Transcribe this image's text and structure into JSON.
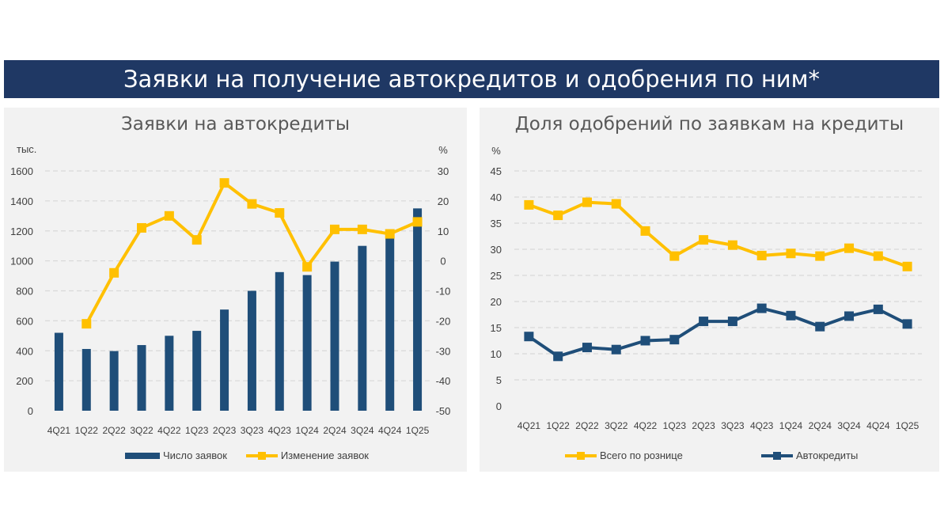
{
  "page_title": "Заявки на получение автокредитов и одобрения по ним*",
  "colors": {
    "navy": "#1f3864",
    "bar": "#1f4e79",
    "yellow": "#ffc000",
    "panel_bg": "#f2f2f2",
    "grid": "#d9d9d9"
  },
  "chart_data": [
    {
      "type": "bar",
      "title": "Заявки на автокредиты",
      "categories": [
        "4Q21",
        "1Q22",
        "2Q22",
        "3Q22",
        "4Q22",
        "1Q23",
        "2Q23",
        "3Q23",
        "4Q23",
        "1Q24",
        "2Q24",
        "3Q24",
        "4Q24",
        "1Q25"
      ],
      "y_unit": "тыс.",
      "y2_unit": "%",
      "ylim": [
        0,
        1600
      ],
      "yticks": [
        "0",
        "200",
        "400",
        "600",
        "800",
        "1000",
        "1200",
        "1400",
        "1600"
      ],
      "y2lim": [
        -50,
        30
      ],
      "y2ticks": [
        "-50",
        "-40",
        "-30",
        "-20",
        "-10",
        "0",
        "10",
        "20",
        "30"
      ],
      "grid": true,
      "legend_position": "bottom",
      "series": [
        {
          "name": "Число заявок",
          "type": "bar",
          "axis": "left",
          "values": [
            520,
            412,
            398,
            438,
            500,
            533,
            675,
            800,
            925,
            905,
            995,
            1100,
            1180,
            1350
          ]
        },
        {
          "name": "Изменение заявок",
          "type": "line",
          "axis": "right",
          "values": [
            null,
            -21,
            -4,
            11,
            15,
            7,
            26,
            19,
            16,
            -2,
            10.5,
            10.5,
            9,
            13
          ]
        }
      ]
    },
    {
      "type": "line",
      "title": "Доля одобрений по заявкам на кредиты",
      "categories": [
        "4Q21",
        "1Q22",
        "2Q22",
        "3Q22",
        "4Q22",
        "1Q23",
        "2Q23",
        "3Q23",
        "4Q23",
        "1Q24",
        "2Q24",
        "3Q24",
        "4Q24",
        "1Q25"
      ],
      "y_unit": "%",
      "ylim": [
        0,
        45
      ],
      "yticks": [
        "0",
        "5",
        "10",
        "15",
        "20",
        "25",
        "30",
        "35",
        "40",
        "45"
      ],
      "grid": true,
      "legend_position": "bottom",
      "series": [
        {
          "name": "Всего по рознице",
          "values": [
            38.5,
            36.5,
            39,
            38.7,
            33.5,
            28.7,
            31.8,
            30.8,
            28.8,
            29.2,
            28.7,
            30.2,
            28.7,
            26.7
          ]
        },
        {
          "name": "Автокредиты",
          "values": [
            13.3,
            9.5,
            11.2,
            10.8,
            12.5,
            12.7,
            16.2,
            16.2,
            18.7,
            17.3,
            15.2,
            17.2,
            18.5,
            15.7
          ]
        }
      ]
    }
  ]
}
